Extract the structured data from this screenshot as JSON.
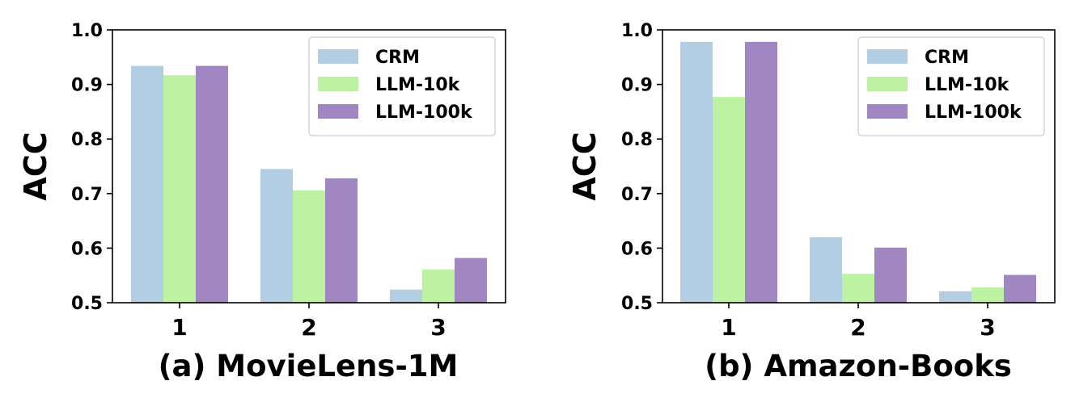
{
  "chart_data": [
    {
      "type": "bar",
      "title": "(a) MovieLens-1M",
      "xlabel": "",
      "ylabel": "ACC",
      "categories": [
        "1",
        "2",
        "3"
      ],
      "ylim": [
        0.5,
        1.0
      ],
      "yticks": [
        "0.5",
        "0.6",
        "0.7",
        "0.8",
        "0.9",
        "1.0"
      ],
      "legend_position": "top-right",
      "grid": false,
      "series": [
        {
          "name": "CRM",
          "color": "#b3cde3",
          "values": [
            0.934,
            0.745,
            0.524
          ]
        },
        {
          "name": "LLM-10k",
          "color": "#bdf2a2",
          "values": [
            0.917,
            0.706,
            0.561
          ]
        },
        {
          "name": "LLM-100k",
          "color": "#a087c1",
          "values": [
            0.934,
            0.728,
            0.582
          ]
        }
      ]
    },
    {
      "type": "bar",
      "title": "(b) Amazon-Books",
      "xlabel": "",
      "ylabel": "ACC",
      "categories": [
        "1",
        "2",
        "3"
      ],
      "ylim": [
        0.5,
        1.0
      ],
      "yticks": [
        "0.5",
        "0.6",
        "0.7",
        "0.8",
        "0.9",
        "1.0"
      ],
      "legend_position": "top-right",
      "grid": false,
      "series": [
        {
          "name": "CRM",
          "color": "#b3cde3",
          "values": [
            0.978,
            0.62,
            0.521
          ]
        },
        {
          "name": "LLM-10k",
          "color": "#bdf2a2",
          "values": [
            0.877,
            0.553,
            0.528
          ]
        },
        {
          "name": "LLM-100k",
          "color": "#a087c1",
          "values": [
            0.978,
            0.601,
            0.551
          ]
        }
      ]
    }
  ]
}
